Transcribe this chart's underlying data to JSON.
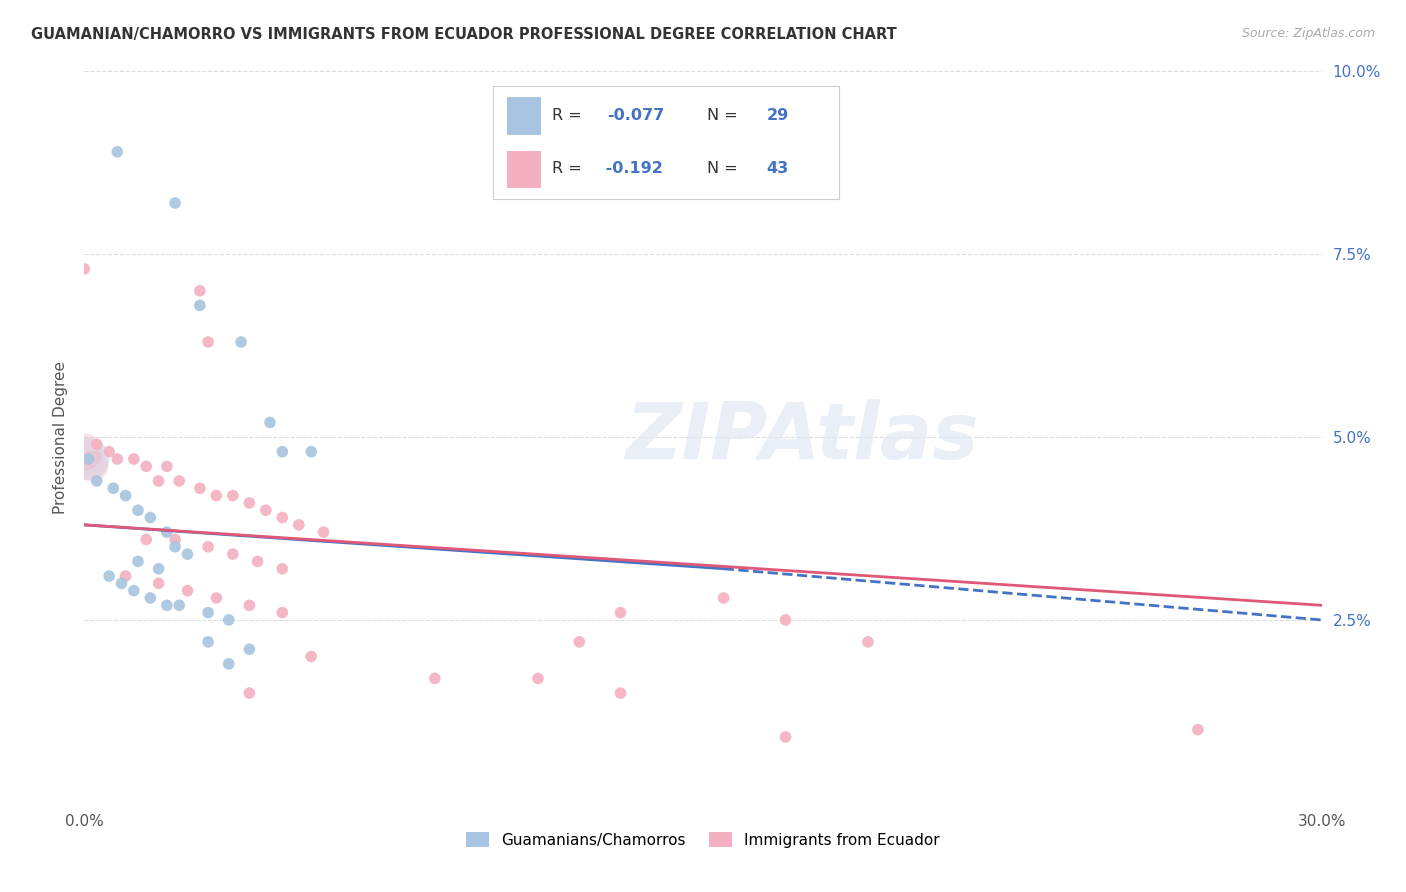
{
  "title": "GUAMANIAN/CHAMORRO VS IMMIGRANTS FROM ECUADOR PROFESSIONAL DEGREE CORRELATION CHART",
  "source": "Source: ZipAtlas.com",
  "ylabel": "Professional Degree",
  "xlim": [
    0.0,
    0.3
  ],
  "ylim": [
    0.0,
    0.1
  ],
  "xticks": [
    0.0,
    0.05,
    0.1,
    0.15,
    0.2,
    0.25,
    0.3
  ],
  "yticks": [
    0.0,
    0.025,
    0.05,
    0.075,
    0.1
  ],
  "xtick_labels": [
    "0.0%",
    "",
    "",
    "",
    "",
    "",
    "30.0%"
  ],
  "ytick_labels_right": [
    "",
    "2.5%",
    "5.0%",
    "7.5%",
    "10.0%"
  ],
  "legend_labels_bottom": [
    "Guamanians/Chamorros",
    "Immigrants from Ecuador"
  ],
  "watermark": "ZIPAtlas",
  "blue_scatter": [
    [
      0.008,
      0.089
    ],
    [
      0.022,
      0.082
    ],
    [
      0.028,
      0.068
    ],
    [
      0.038,
      0.063
    ],
    [
      0.045,
      0.052
    ],
    [
      0.048,
      0.048
    ],
    [
      0.001,
      0.047
    ],
    [
      0.003,
      0.044
    ],
    [
      0.007,
      0.043
    ],
    [
      0.01,
      0.042
    ],
    [
      0.013,
      0.04
    ],
    [
      0.016,
      0.039
    ],
    [
      0.02,
      0.037
    ],
    [
      0.055,
      0.048
    ],
    [
      0.022,
      0.035
    ],
    [
      0.025,
      0.034
    ],
    [
      0.013,
      0.033
    ],
    [
      0.018,
      0.032
    ],
    [
      0.006,
      0.031
    ],
    [
      0.009,
      0.03
    ],
    [
      0.012,
      0.029
    ],
    [
      0.016,
      0.028
    ],
    [
      0.02,
      0.027
    ],
    [
      0.023,
      0.027
    ],
    [
      0.03,
      0.026
    ],
    [
      0.035,
      0.025
    ],
    [
      0.03,
      0.022
    ],
    [
      0.04,
      0.021
    ],
    [
      0.035,
      0.019
    ]
  ],
  "pink_scatter": [
    [
      0.0,
      0.073
    ],
    [
      0.028,
      0.07
    ],
    [
      0.03,
      0.063
    ],
    [
      0.003,
      0.049
    ],
    [
      0.006,
      0.048
    ],
    [
      0.008,
      0.047
    ],
    [
      0.012,
      0.047
    ],
    [
      0.015,
      0.046
    ],
    [
      0.02,
      0.046
    ],
    [
      0.018,
      0.044
    ],
    [
      0.023,
      0.044
    ],
    [
      0.028,
      0.043
    ],
    [
      0.032,
      0.042
    ],
    [
      0.036,
      0.042
    ],
    [
      0.04,
      0.041
    ],
    [
      0.044,
      0.04
    ],
    [
      0.048,
      0.039
    ],
    [
      0.052,
      0.038
    ],
    [
      0.058,
      0.037
    ],
    [
      0.015,
      0.036
    ],
    [
      0.022,
      0.036
    ],
    [
      0.03,
      0.035
    ],
    [
      0.036,
      0.034
    ],
    [
      0.042,
      0.033
    ],
    [
      0.048,
      0.032
    ],
    [
      0.01,
      0.031
    ],
    [
      0.018,
      0.03
    ],
    [
      0.025,
      0.029
    ],
    [
      0.032,
      0.028
    ],
    [
      0.04,
      0.027
    ],
    [
      0.048,
      0.026
    ],
    [
      0.13,
      0.026
    ],
    [
      0.155,
      0.028
    ],
    [
      0.17,
      0.025
    ],
    [
      0.12,
      0.022
    ],
    [
      0.19,
      0.022
    ],
    [
      0.055,
      0.02
    ],
    [
      0.085,
      0.017
    ],
    [
      0.11,
      0.017
    ],
    [
      0.04,
      0.015
    ],
    [
      0.13,
      0.015
    ],
    [
      0.27,
      0.01
    ],
    [
      0.17,
      0.009
    ]
  ],
  "blue_line": [
    [
      0.0,
      0.038
    ],
    [
      0.155,
      0.032
    ],
    [
      0.3,
      0.025
    ]
  ],
  "pink_line": [
    [
      0.0,
      0.038
    ],
    [
      0.3,
      0.027
    ]
  ],
  "blue_line_color": "#4472c4",
  "pink_line_color": "#e05878",
  "scatter_blue_color": "#a8c4e0",
  "scatter_pink_color": "#f4b0c0",
  "scatter_size": 70,
  "background_color": "#ffffff",
  "grid_color": "#dddddd",
  "legend_R_color": "-0.077",
  "legend_N_blue": "29",
  "legend_R2_color": "-0.192",
  "legend_N_pink": "43"
}
